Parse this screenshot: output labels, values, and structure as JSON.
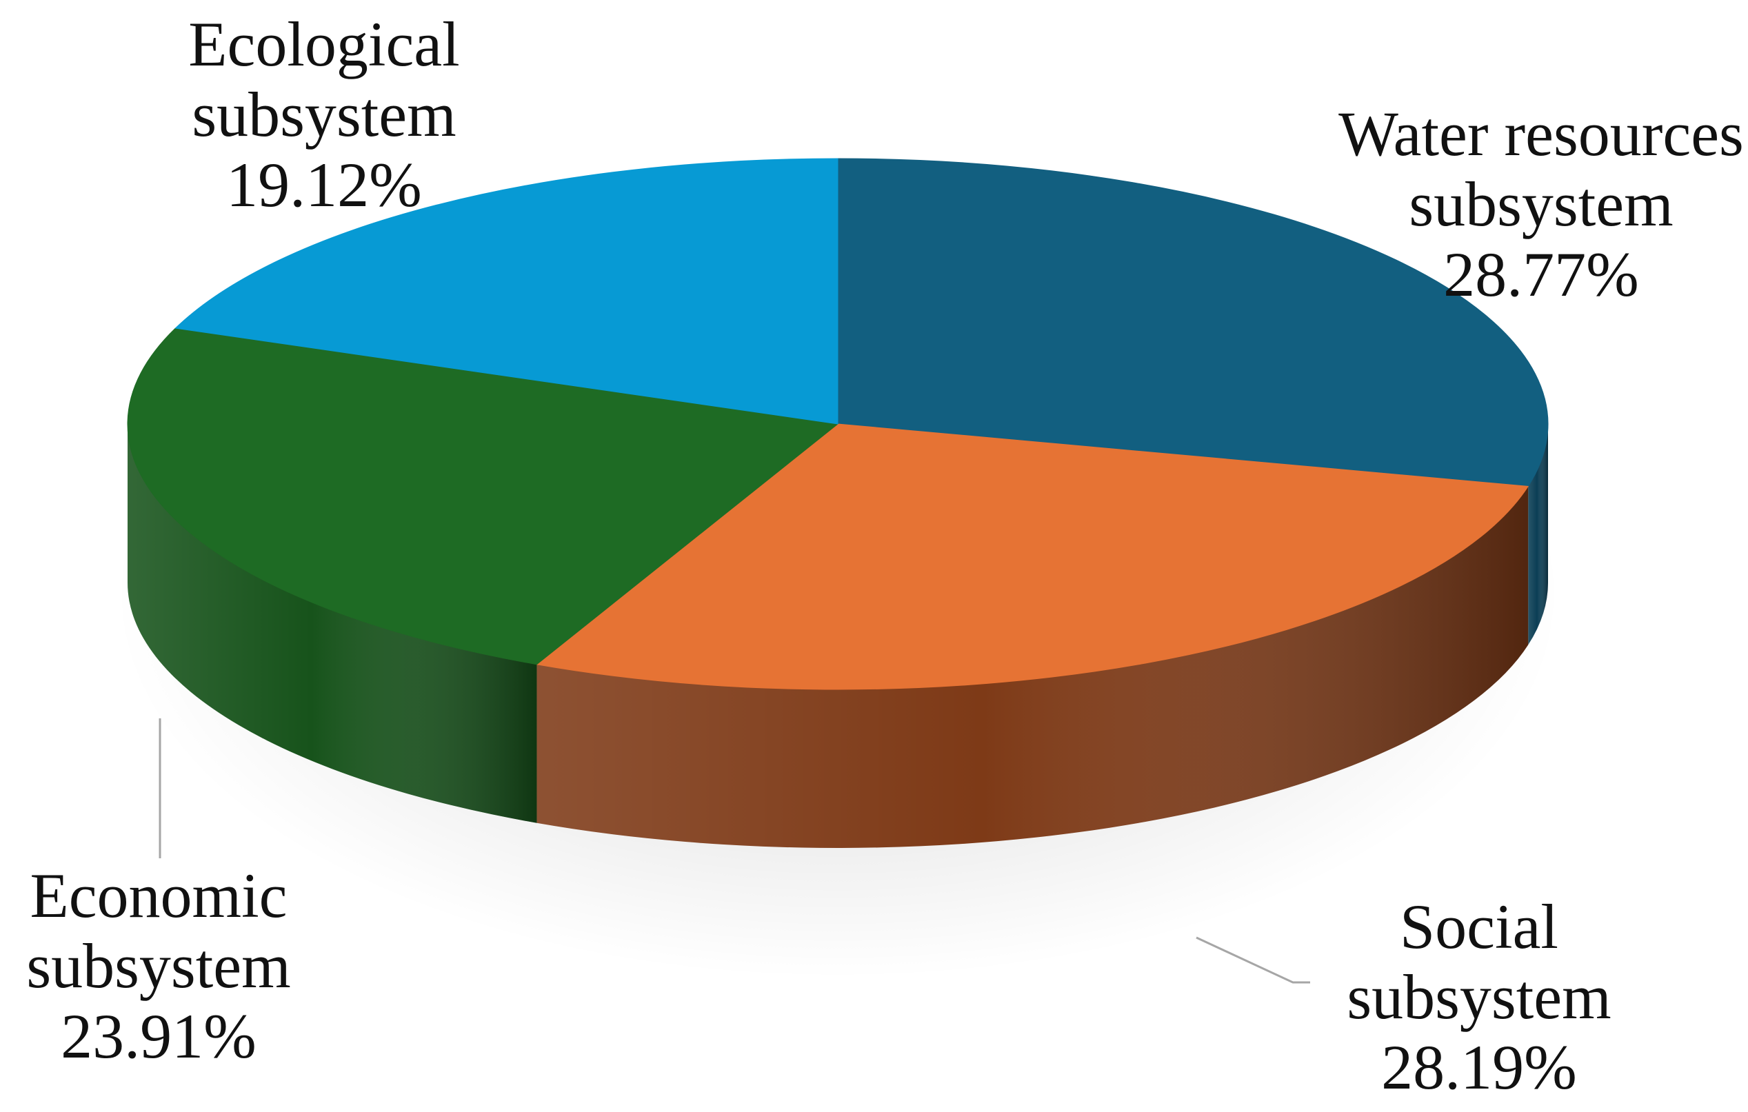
{
  "chart_data": {
    "type": "pie",
    "style": "3d",
    "slices": [
      {
        "name": "Water resources subsystem",
        "label_lines": [
          "Water resources",
          "subsystem",
          "28.77%"
        ],
        "value": 28.77,
        "color": "#125F80",
        "side_color": "#0B3E55"
      },
      {
        "name": "Social subsystem",
        "label_lines": [
          "Social",
          "subsystem",
          "28.19%"
        ],
        "value": 28.19,
        "color": "#E67334",
        "side_color": "#7E3A17"
      },
      {
        "name": "Economic subsystem",
        "label_lines": [
          "Economic",
          "subsystem",
          "23.91%"
        ],
        "value": 23.91,
        "color": "#1E6B24",
        "side_color": "#17531B"
      },
      {
        "name": "Ecological subsystem",
        "label_lines": [
          "Ecological",
          "subsystem",
          "19.12%"
        ],
        "value": 19.12,
        "color": "#079AD4",
        "side_color": "#05709A"
      }
    ]
  }
}
